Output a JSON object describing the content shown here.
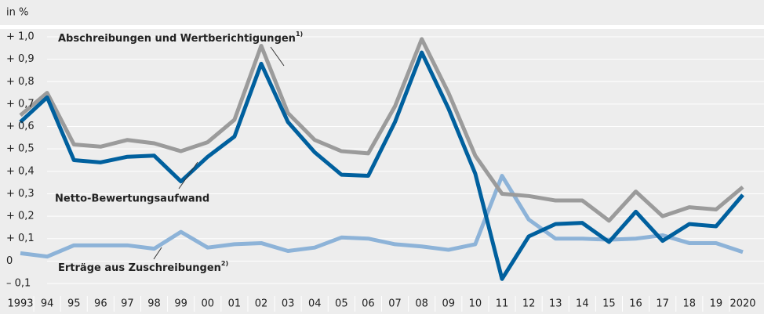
{
  "chart_data": {
    "type": "line",
    "unit_label": "in %",
    "categories": [
      "1993",
      "94",
      "95",
      "96",
      "97",
      "98",
      "99",
      "00",
      "01",
      "02",
      "03",
      "04",
      "05",
      "06",
      "07",
      "08",
      "09",
      "10",
      "11",
      "12",
      "13",
      "14",
      "15",
      "16",
      "17",
      "18",
      "19",
      "2020"
    ],
    "series": [
      {
        "name": "Abschreibungen und Wertberichtigungen",
        "footnote": "1)",
        "color": "#9b9b9b",
        "values": [
          0.65,
          0.75,
          0.52,
          0.51,
          0.54,
          0.525,
          0.49,
          0.53,
          0.63,
          0.96,
          0.66,
          0.54,
          0.49,
          0.48,
          0.69,
          0.99,
          0.75,
          0.47,
          0.3,
          0.29,
          0.27,
          0.27,
          0.18,
          0.31,
          0.2,
          0.24,
          0.23,
          0.33
        ]
      },
      {
        "name": "Netto-Bewertungsaufwand",
        "color": "#00609e",
        "values": [
          0.62,
          0.73,
          0.45,
          0.44,
          0.465,
          0.47,
          0.355,
          0.465,
          0.555,
          0.88,
          0.62,
          0.485,
          0.385,
          0.38,
          0.62,
          0.93,
          0.68,
          0.39,
          -0.08,
          0.11,
          0.165,
          0.17,
          0.085,
          0.22,
          0.09,
          0.165,
          0.155,
          0.295
        ]
      },
      {
        "name": "Erträge aus Zuschreibungen",
        "footnote": "2)",
        "color": "#8db3d8",
        "values": [
          0.035,
          0.02,
          0.07,
          0.07,
          0.07,
          0.055,
          0.13,
          0.06,
          0.075,
          0.08,
          0.045,
          0.06,
          0.105,
          0.1,
          0.075,
          0.065,
          0.05,
          0.075,
          0.38,
          0.185,
          0.1,
          0.1,
          0.095,
          0.1,
          0.115,
          0.08,
          0.08,
          0.04
        ]
      }
    ],
    "ylim": [
      -0.1,
      1.0
    ],
    "yticks": [
      {
        "value": 1.0,
        "label": "+ 1,0"
      },
      {
        "value": 0.9,
        "label": "+ 0,9"
      },
      {
        "value": 0.8,
        "label": "+ 0,8"
      },
      {
        "value": 0.7,
        "label": "+ 0,7"
      },
      {
        "value": 0.6,
        "label": "+ 0,6"
      },
      {
        "value": 0.5,
        "label": "+ 0,5"
      },
      {
        "value": 0.4,
        "label": "+ 0,4"
      },
      {
        "value": 0.3,
        "label": "+ 0,3"
      },
      {
        "value": 0.2,
        "label": "+ 0,2"
      },
      {
        "value": 0.1,
        "label": "+ 0,1"
      },
      0,
      {
        "value": -0.1,
        "label": "– 0,1"
      }
    ],
    "grid": true
  }
}
